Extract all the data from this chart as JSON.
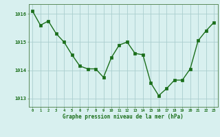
{
  "x": [
    0,
    1,
    2,
    3,
    4,
    5,
    6,
    7,
    8,
    9,
    10,
    11,
    12,
    13,
    14,
    15,
    16,
    17,
    18,
    19,
    20,
    21,
    22,
    23
  ],
  "y": [
    1016.1,
    1015.6,
    1015.75,
    1015.3,
    1015.0,
    1014.55,
    1014.15,
    1014.05,
    1014.05,
    1013.75,
    1014.45,
    1014.9,
    1015.0,
    1014.6,
    1014.55,
    1013.55,
    1013.1,
    1013.35,
    1013.65,
    1013.65,
    1014.05,
    1015.05,
    1015.4,
    1015.7
  ],
  "line_color": "#1a6e1a",
  "marker_color": "#1a6e1a",
  "bg_color": "#d8f0ef",
  "grid_color": "#aacece",
  "xlabel": "Graphe pression niveau de la mer (hPa)",
  "xlabel_color": "#1a6e1a",
  "tick_color": "#1a6e1a",
  "ylim": [
    1012.7,
    1016.35
  ],
  "yticks": [
    1013,
    1014,
    1015,
    1016
  ],
  "xlim": [
    -0.5,
    23.5
  ],
  "xticks": [
    0,
    1,
    2,
    3,
    4,
    5,
    6,
    7,
    8,
    9,
    10,
    11,
    12,
    13,
    14,
    15,
    16,
    17,
    18,
    19,
    20,
    21,
    22,
    23
  ],
  "spine_color": "#5a8a5a",
  "marker_size": 2.5,
  "line_width": 1.0
}
